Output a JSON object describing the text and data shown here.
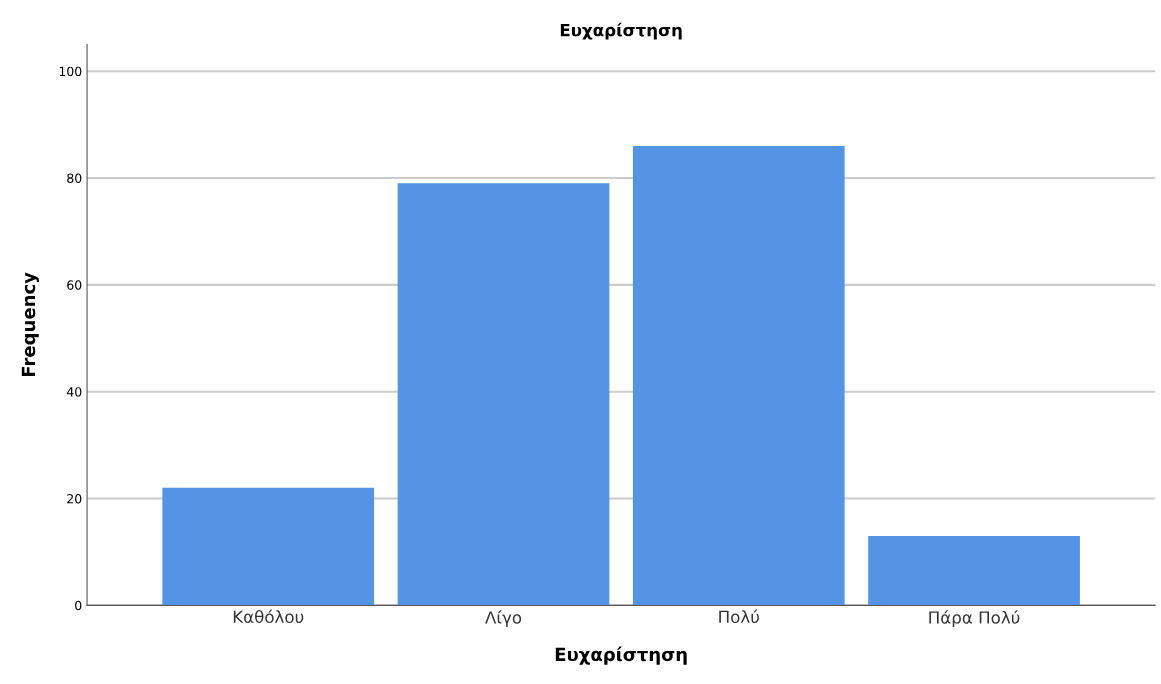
{
  "chart_data": {
    "type": "bar",
    "title": "Ευχαρίστηση",
    "xlabel": "Ευχαρίστηση",
    "ylabel": "Frequency",
    "categories": [
      "Καθόλου",
      "Λίγο",
      "Πολύ",
      "Πάρα Πολύ"
    ],
    "values": [
      22,
      79,
      86,
      13
    ],
    "color": "#5594e4",
    "ylim": [
      0,
      105
    ],
    "yticks": [
      0,
      20,
      40,
      60,
      80,
      100
    ],
    "grid": "y"
  }
}
